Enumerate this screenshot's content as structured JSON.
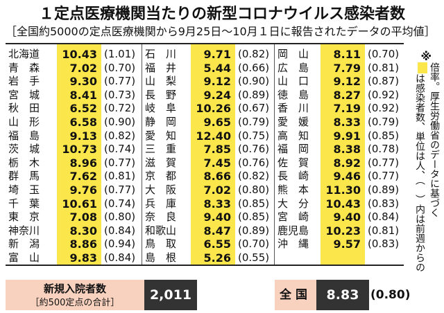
{
  "title": "１定点医療機関当たりの新型コロナウイルス感染者数",
  "subtitle": "［全国約5000の定点医療機関から9月25日～10月１日に報告されたデータの平均値］",
  "columns": [
    [
      {
        "pref": "北海道",
        "rate": "10.43",
        "prev": "(1.01)"
      },
      {
        "pref": "青　森",
        "rate": "7.02",
        "prev": "(0.70)"
      },
      {
        "pref": "岩　手",
        "rate": "9.30",
        "prev": "(0.77)"
      },
      {
        "pref": "宮　城",
        "rate": "8.41",
        "prev": "(0.73)"
      },
      {
        "pref": "秋　田",
        "rate": "6.52",
        "prev": "(0.72)"
      },
      {
        "pref": "山　形",
        "rate": "6.58",
        "prev": "(0.90)"
      },
      {
        "pref": "福　島",
        "rate": "9.13",
        "prev": "(0.82)"
      },
      {
        "pref": "茨　城",
        "rate": "10.73",
        "prev": "(0.74)"
      },
      {
        "pref": "栃　木",
        "rate": "8.96",
        "prev": "(0.77)"
      },
      {
        "pref": "群　馬",
        "rate": "7.62",
        "prev": "(0.81)"
      },
      {
        "pref": "埼　玉",
        "rate": "9.76",
        "prev": "(0.77)"
      },
      {
        "pref": "千　葉",
        "rate": "10.61",
        "prev": "(0.74)"
      },
      {
        "pref": "東　京",
        "rate": "7.08",
        "prev": "(0.80)"
      },
      {
        "pref": "神奈川",
        "rate": "8.30",
        "prev": "(0.84)"
      },
      {
        "pref": "新　潟",
        "rate": "8.86",
        "prev": "(0.94)"
      },
      {
        "pref": "富　山",
        "rate": "9.83",
        "prev": "(0.84)"
      }
    ],
    [
      {
        "pref": "石　川",
        "rate": "9.71",
        "prev": "(0.82)"
      },
      {
        "pref": "福　井",
        "rate": "5.44",
        "prev": "(0.66)"
      },
      {
        "pref": "山　梨",
        "rate": "9.12",
        "prev": "(0.90)"
      },
      {
        "pref": "長　野",
        "rate": "9.24",
        "prev": "(0.89)"
      },
      {
        "pref": "岐　阜",
        "rate": "10.26",
        "prev": "(0.67)"
      },
      {
        "pref": "静　岡",
        "rate": "9.65",
        "prev": "(0.79)"
      },
      {
        "pref": "愛　知",
        "rate": "12.40",
        "prev": "(0.75)"
      },
      {
        "pref": "三　重",
        "rate": "7.85",
        "prev": "(0.76)"
      },
      {
        "pref": "滋　賀",
        "rate": "7.45",
        "prev": "(0.76)"
      },
      {
        "pref": "京　都",
        "rate": "8.66",
        "prev": "(0.82)"
      },
      {
        "pref": "大　阪",
        "rate": "7.02",
        "prev": "(0.80)"
      },
      {
        "pref": "兵　庫",
        "rate": "8.33",
        "prev": "(0.85)"
      },
      {
        "pref": "奈　良",
        "rate": "9.40",
        "prev": "(0.85)"
      },
      {
        "pref": "和歌山",
        "rate": "8.47",
        "prev": "(0.89)"
      },
      {
        "pref": "鳥　取",
        "rate": "6.55",
        "prev": "(0.70)"
      },
      {
        "pref": "島　根",
        "rate": "5.26",
        "prev": "(0.55)"
      }
    ],
    [
      {
        "pref": "岡　山",
        "rate": "8.11",
        "prev": "(0.70)"
      },
      {
        "pref": "広　島",
        "rate": "7.79",
        "prev": "(0.81)"
      },
      {
        "pref": "山　口",
        "rate": "9.12",
        "prev": "(0.87)"
      },
      {
        "pref": "徳　島",
        "rate": "8.27",
        "prev": "(0.92)"
      },
      {
        "pref": "香　川",
        "rate": "7.19",
        "prev": "(0.92)"
      },
      {
        "pref": "愛　媛",
        "rate": "8.33",
        "prev": "(0.79)"
      },
      {
        "pref": "高　知",
        "rate": "9.91",
        "prev": "(0.85)"
      },
      {
        "pref": "福　岡",
        "rate": "8.38",
        "prev": "(0.78)"
      },
      {
        "pref": "佐　賀",
        "rate": "8.92",
        "prev": "(0.77)"
      },
      {
        "pref": "長　崎",
        "rate": "9.46",
        "prev": "(0.77)"
      },
      {
        "pref": "熊　本",
        "rate": "11.30",
        "prev": "(0.89)"
      },
      {
        "pref": "大　分",
        "rate": "10.43",
        "prev": "(0.83)"
      },
      {
        "pref": "宮　崎",
        "rate": "9.40",
        "prev": "(0.84)"
      },
      {
        "pref": "鹿児島",
        "rate": "10.23",
        "prev": "(0.81)"
      },
      {
        "pref": "沖　縄",
        "rate": "9.57",
        "prev": "(0.83)"
      }
    ]
  ],
  "note": {
    "asterisk": "※",
    "text_a": "は感染者数、単位は人、（　）内は前週からの",
    "text_b": "倍率。厚生労働省のデータに基づく"
  },
  "footer": {
    "admissions_label": "新規入院者数",
    "admissions_sub": "［約500定点の合計］",
    "admissions_value": "2,011",
    "national_label": "全国",
    "national_rate": "8.83",
    "national_prev": "(0.80)"
  },
  "colors": {
    "highlight": "#fbe64b",
    "label_box": "#f8d2bf",
    "dark_box": "#333333"
  }
}
